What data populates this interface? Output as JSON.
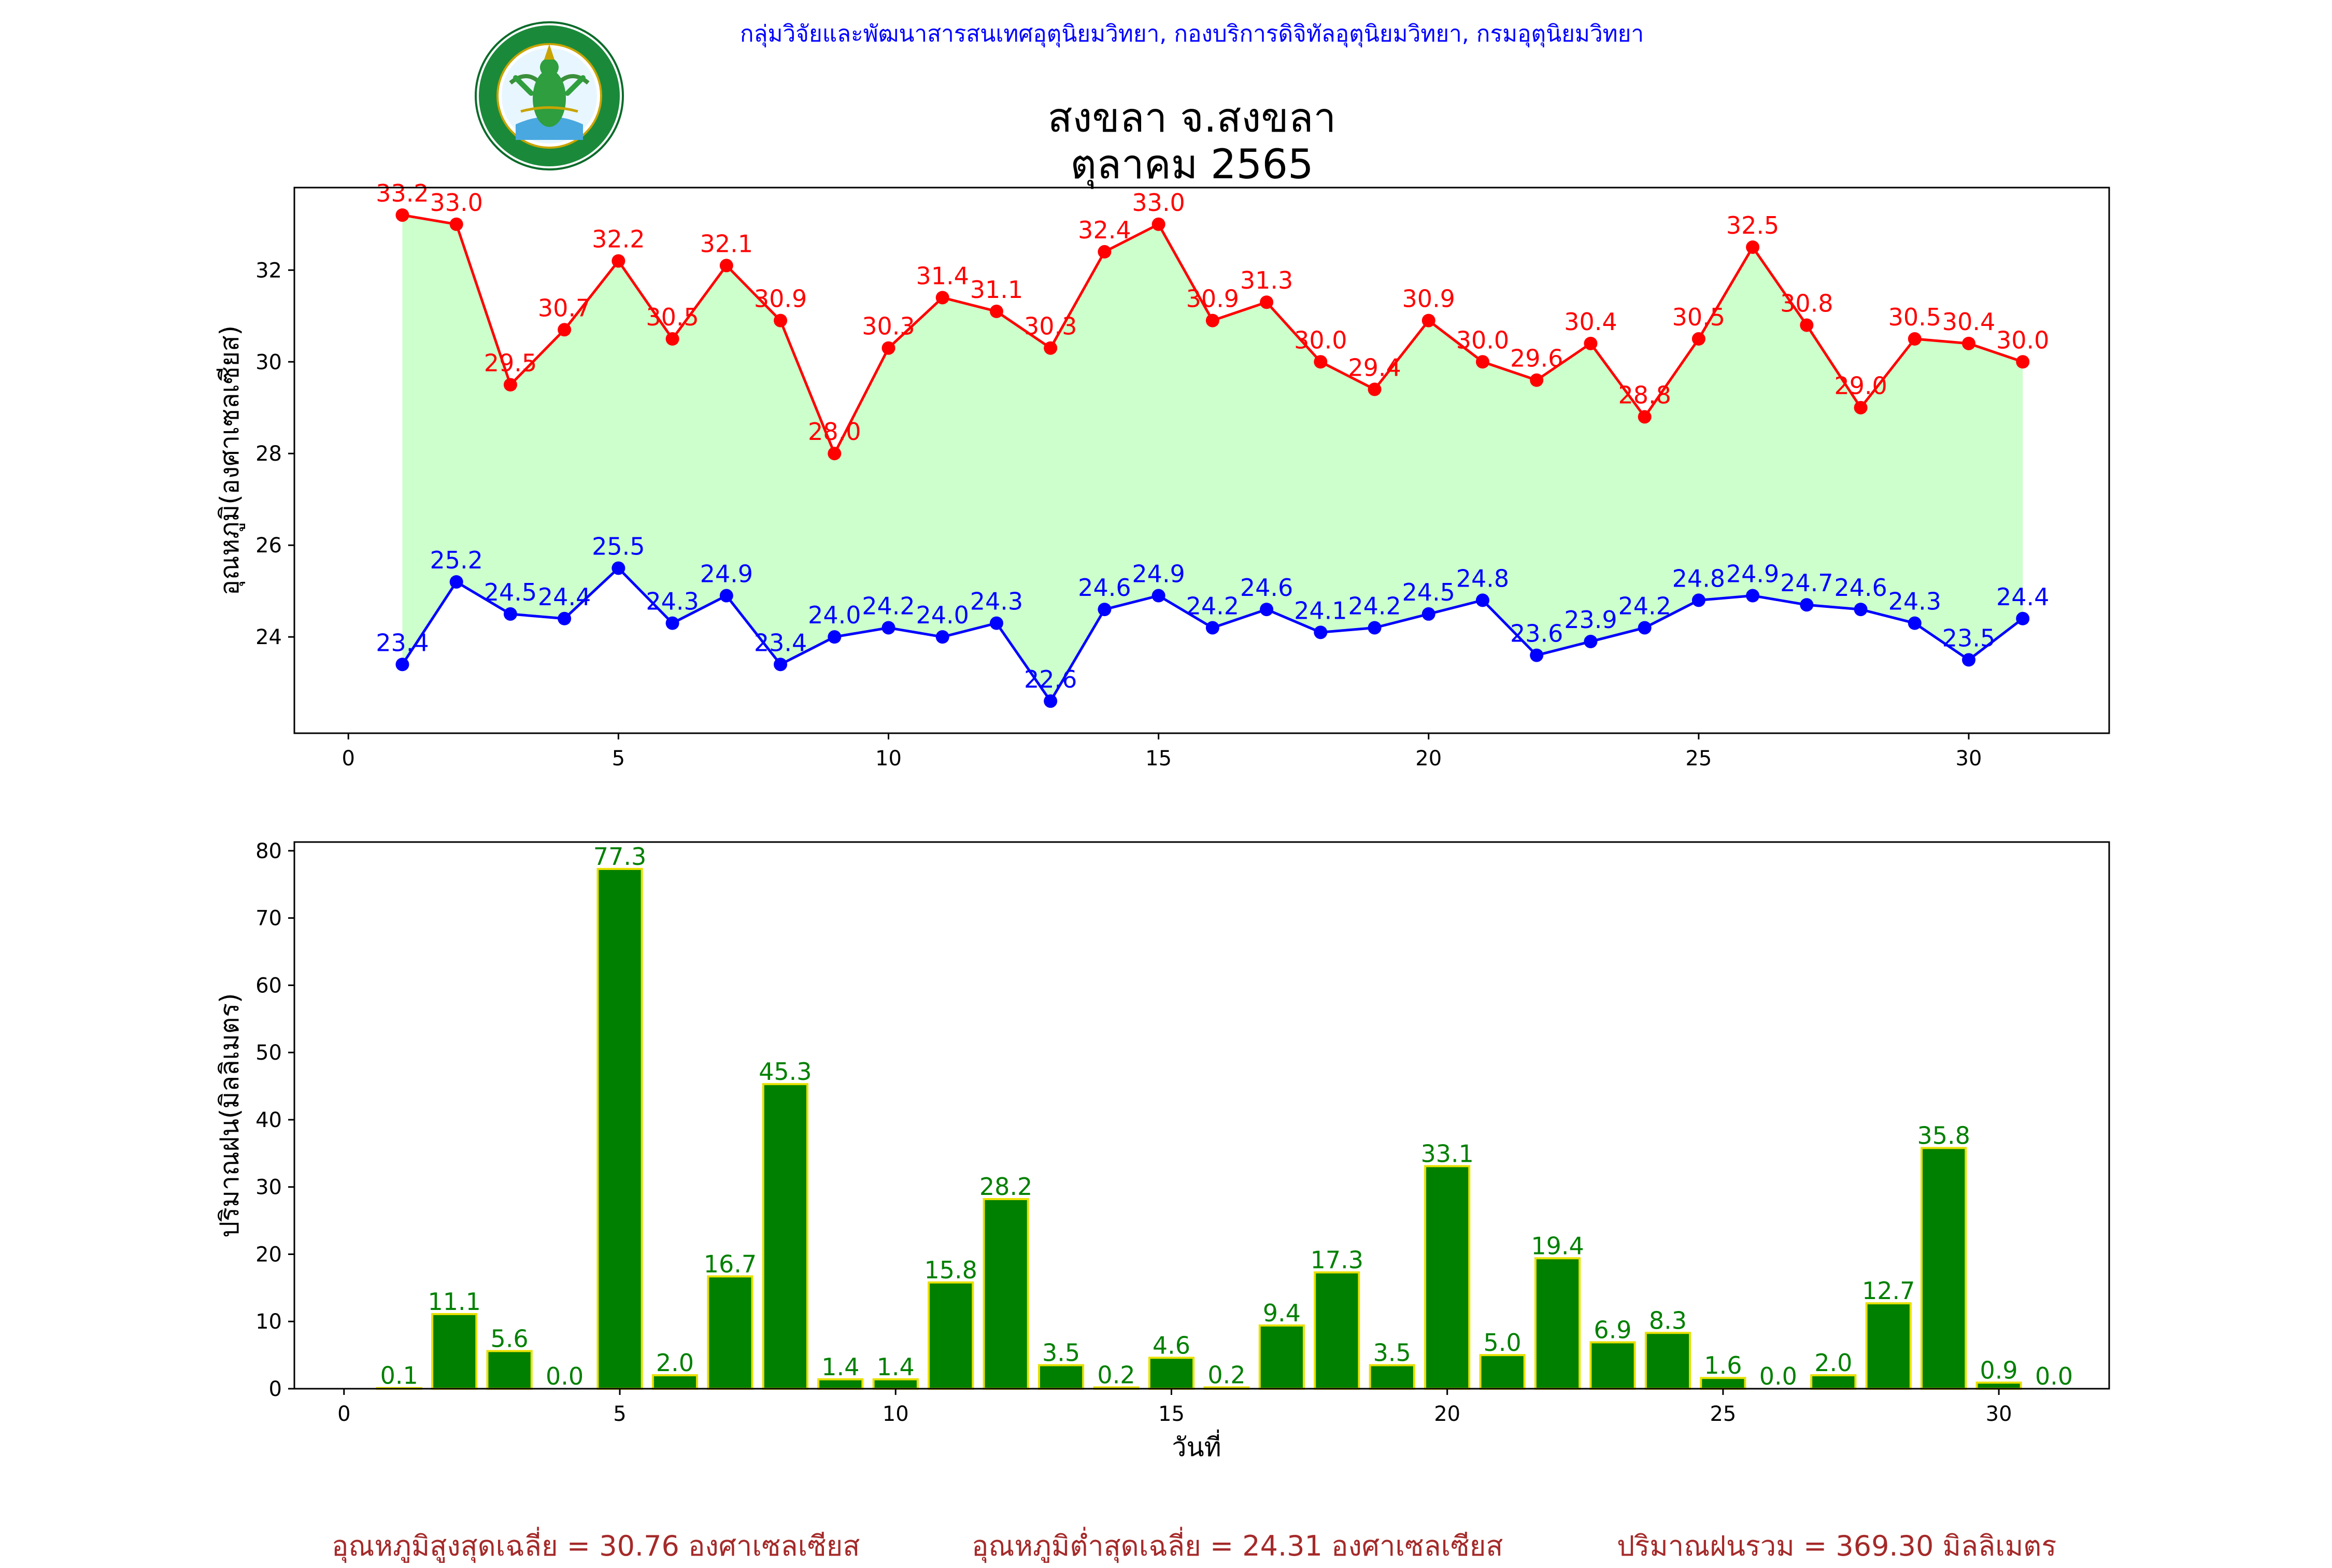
{
  "header": {
    "agency_line": "กลุ่มวิจัยและพัฒนาสารสนเทศอุตุนิยมวิทยา, กองบริการดิจิทัลอุตุนิยมวิทยา, กรมอุตุนิยมวิทยา",
    "logo_top_text": "กรมอุตุนิยมวิทยา",
    "logo_bottom_text": "METEOROLOGICAL DEPARTMENT",
    "station": "สงขลา จ.สงขลา",
    "period": "ตุลาคม 2565"
  },
  "chart_data": [
    {
      "type": "line",
      "name": "temperature",
      "x": [
        1,
        2,
        3,
        4,
        5,
        6,
        7,
        8,
        9,
        10,
        11,
        12,
        13,
        14,
        15,
        16,
        17,
        18,
        19,
        20,
        21,
        22,
        23,
        24,
        25,
        26,
        27,
        28,
        29,
        30,
        31
      ],
      "series": [
        {
          "color": "#ff0000",
          "values": [
            33.2,
            33.0,
            29.5,
            30.7,
            32.2,
            30.5,
            32.1,
            30.9,
            28.0,
            30.3,
            31.4,
            31.1,
            30.3,
            32.4,
            33.0,
            30.9,
            31.3,
            30.0,
            29.4,
            30.9,
            30.0,
            29.6,
            30.4,
            28.8,
            30.5,
            32.5,
            30.8,
            29.0,
            30.5,
            30.4,
            30.0
          ]
        },
        {
          "color": "#0000ff",
          "values": [
            23.4,
            25.2,
            24.5,
            24.4,
            25.5,
            24.3,
            24.9,
            23.4,
            24.0,
            24.2,
            24.0,
            24.3,
            22.6,
            24.6,
            24.9,
            24.2,
            24.6,
            24.1,
            24.2,
            24.5,
            24.8,
            23.6,
            23.9,
            24.2,
            24.8,
            24.9,
            24.7,
            24.6,
            24.3,
            23.5,
            24.4
          ]
        }
      ],
      "fill_between_color": "#ccffcc",
      "ylabel": "อุณหภูมิ(องศาเซลเซียส)",
      "xlim": [
        -1,
        32.6
      ],
      "ylim": [
        21.9,
        33.8
      ],
      "xticks": [
        0,
        5,
        10,
        15,
        20,
        25,
        30
      ],
      "yticks": [
        24,
        26,
        28,
        30,
        32
      ]
    },
    {
      "type": "bar",
      "name": "rainfall",
      "x": [
        1,
        2,
        3,
        4,
        5,
        6,
        7,
        8,
        9,
        10,
        11,
        12,
        13,
        14,
        15,
        16,
        17,
        18,
        19,
        20,
        21,
        22,
        23,
        24,
        25,
        26,
        27,
        28,
        29,
        30,
        31
      ],
      "values": [
        0.1,
        11.1,
        5.6,
        0.0,
        77.3,
        2.0,
        16.7,
        45.3,
        1.4,
        1.4,
        15.8,
        28.2,
        3.5,
        0.2,
        4.6,
        0.2,
        9.4,
        17.3,
        3.5,
        33.1,
        5.0,
        19.4,
        6.9,
        8.3,
        1.6,
        0.0,
        2.0,
        12.7,
        35.8,
        0.9,
        0.0
      ],
      "bar_color": "#008000",
      "edge_color": "#e8e000",
      "label_color": "#008000",
      "xlabel": "วันที่",
      "ylabel": "ปริมาณฝน(มิลลิเมตร)",
      "xlim": [
        -0.9,
        32.0
      ],
      "ylim": [
        0,
        81.3
      ],
      "xticks": [
        0,
        5,
        10,
        15,
        20,
        25,
        30
      ],
      "yticks": [
        0,
        10,
        20,
        30,
        40,
        50,
        60,
        70,
        80
      ]
    }
  ],
  "footer": {
    "avg_max": "อุณหภูมิสูงสุดเฉลี่ย = 30.76 องศาเซลเซียส",
    "avg_min": "อุณหภูมิต่ำสุดเฉลี่ย = 24.31 องศาเซลเซียส",
    "total_rain": "ปริมาณฝนรวม = 369.30 มิลลิเมตร"
  }
}
